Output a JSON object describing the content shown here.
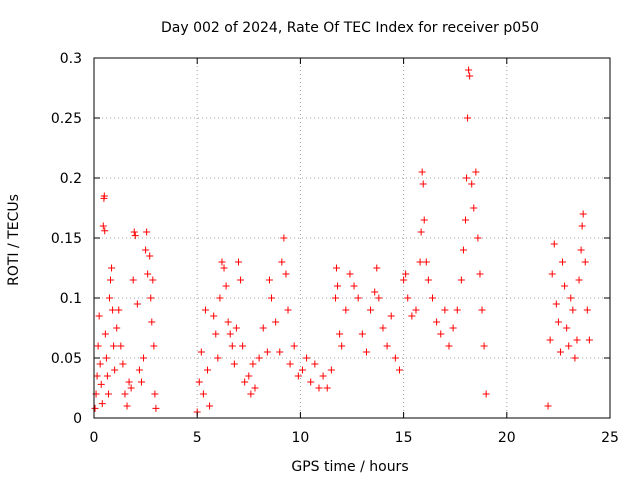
{
  "chart_data": {
    "type": "scatter",
    "title": "Day 002 of 2024, Rate Of TEC Index for receiver p050",
    "xlabel": "GPS time / hours",
    "ylabel": "ROTI / TECUs",
    "xlim": [
      0,
      25
    ],
    "ylim": [
      0,
      0.3
    ],
    "x_ticks": [
      0,
      5,
      10,
      15,
      20,
      25
    ],
    "x_tick_labels": [
      "0",
      "5",
      "10",
      "15",
      "20",
      "25"
    ],
    "y_ticks": [
      0,
      0.05,
      0.1,
      0.15,
      0.2,
      0.25,
      0.3
    ],
    "y_tick_labels": [
      "0",
      "0.05",
      "0.1",
      "0.15",
      "0.2",
      "0.25",
      "0.3"
    ],
    "grid": true,
    "marker": "+",
    "color": "#ff0000",
    "series": [
      {
        "name": "ROTI",
        "points": [
          [
            0.05,
            0.008
          ],
          [
            0.1,
            0.02
          ],
          [
            0.15,
            0.035
          ],
          [
            0.2,
            0.06
          ],
          [
            0.25,
            0.085
          ],
          [
            0.3,
            0.045
          ],
          [
            0.35,
            0.028
          ],
          [
            0.4,
            0.012
          ],
          [
            0.45,
            0.16
          ],
          [
            0.48,
            0.183
          ],
          [
            0.5,
            0.185
          ],
          [
            0.52,
            0.156
          ],
          [
            0.55,
            0.07
          ],
          [
            0.6,
            0.05
          ],
          [
            0.65,
            0.035
          ],
          [
            0.7,
            0.02
          ],
          [
            0.75,
            0.1
          ],
          [
            0.8,
            0.115
          ],
          [
            0.85,
            0.125
          ],
          [
            0.9,
            0.09
          ],
          [
            0.95,
            0.06
          ],
          [
            1.0,
            0.04
          ],
          [
            1.1,
            0.075
          ],
          [
            1.2,
            0.09
          ],
          [
            1.3,
            0.06
          ],
          [
            1.4,
            0.045
          ],
          [
            1.5,
            0.02
          ],
          [
            1.6,
            0.01
          ],
          [
            1.7,
            0.03
          ],
          [
            1.8,
            0.025
          ],
          [
            1.9,
            0.115
          ],
          [
            1.95,
            0.155
          ],
          [
            2.0,
            0.152
          ],
          [
            2.1,
            0.095
          ],
          [
            2.2,
            0.04
          ],
          [
            2.3,
            0.03
          ],
          [
            2.4,
            0.05
          ],
          [
            2.5,
            0.14
          ],
          [
            2.55,
            0.155
          ],
          [
            2.6,
            0.12
          ],
          [
            2.7,
            0.135
          ],
          [
            2.75,
            0.1
          ],
          [
            2.8,
            0.08
          ],
          [
            2.85,
            0.115
          ],
          [
            2.9,
            0.06
          ],
          [
            2.95,
            0.02
          ],
          [
            3.0,
            0.008
          ],
          [
            5.0,
            0.005
          ],
          [
            5.1,
            0.03
          ],
          [
            5.2,
            0.055
          ],
          [
            5.3,
            0.02
          ],
          [
            5.4,
            0.09
          ],
          [
            5.5,
            0.04
          ],
          [
            5.6,
            0.01
          ],
          [
            5.8,
            0.085
          ],
          [
            5.9,
            0.07
          ],
          [
            6.0,
            0.05
          ],
          [
            6.1,
            0.1
          ],
          [
            6.2,
            0.13
          ],
          [
            6.3,
            0.125
          ],
          [
            6.4,
            0.11
          ],
          [
            6.5,
            0.08
          ],
          [
            6.6,
            0.07
          ],
          [
            6.7,
            0.06
          ],
          [
            6.8,
            0.045
          ],
          [
            6.9,
            0.075
          ],
          [
            7.0,
            0.13
          ],
          [
            7.1,
            0.115
          ],
          [
            7.2,
            0.06
          ],
          [
            7.3,
            0.03
          ],
          [
            7.5,
            0.035
          ],
          [
            7.6,
            0.02
          ],
          [
            7.7,
            0.045
          ],
          [
            7.8,
            0.025
          ],
          [
            8.0,
            0.05
          ],
          [
            8.2,
            0.075
          ],
          [
            8.4,
            0.055
          ],
          [
            8.5,
            0.115
          ],
          [
            8.6,
            0.1
          ],
          [
            8.8,
            0.08
          ],
          [
            9.0,
            0.055
          ],
          [
            9.1,
            0.13
          ],
          [
            9.2,
            0.15
          ],
          [
            9.3,
            0.12
          ],
          [
            9.4,
            0.09
          ],
          [
            9.5,
            0.045
          ],
          [
            9.7,
            0.06
          ],
          [
            9.9,
            0.035
          ],
          [
            10.1,
            0.04
          ],
          [
            10.3,
            0.05
          ],
          [
            10.5,
            0.03
          ],
          [
            10.7,
            0.045
          ],
          [
            10.9,
            0.025
          ],
          [
            11.1,
            0.035
          ],
          [
            11.3,
            0.025
          ],
          [
            11.5,
            0.04
          ],
          [
            11.7,
            0.1
          ],
          [
            11.75,
            0.125
          ],
          [
            11.8,
            0.11
          ],
          [
            11.9,
            0.07
          ],
          [
            12.0,
            0.06
          ],
          [
            12.2,
            0.09
          ],
          [
            12.4,
            0.12
          ],
          [
            12.6,
            0.11
          ],
          [
            12.8,
            0.1
          ],
          [
            13.0,
            0.07
          ],
          [
            13.2,
            0.055
          ],
          [
            13.4,
            0.09
          ],
          [
            13.6,
            0.105
          ],
          [
            13.7,
            0.125
          ],
          [
            13.8,
            0.1
          ],
          [
            14.0,
            0.075
          ],
          [
            14.2,
            0.06
          ],
          [
            14.4,
            0.085
          ],
          [
            14.6,
            0.05
          ],
          [
            14.8,
            0.04
          ],
          [
            15.0,
            0.115
          ],
          [
            15.1,
            0.12
          ],
          [
            15.2,
            0.1
          ],
          [
            15.4,
            0.085
          ],
          [
            15.6,
            0.09
          ],
          [
            15.8,
            0.13
          ],
          [
            15.85,
            0.155
          ],
          [
            15.9,
            0.205
          ],
          [
            15.95,
            0.195
          ],
          [
            16.0,
            0.165
          ],
          [
            16.1,
            0.13
          ],
          [
            16.2,
            0.115
          ],
          [
            16.4,
            0.1
          ],
          [
            16.6,
            0.08
          ],
          [
            16.8,
            0.07
          ],
          [
            17.0,
            0.09
          ],
          [
            17.2,
            0.06
          ],
          [
            17.4,
            0.075
          ],
          [
            17.6,
            0.09
          ],
          [
            17.8,
            0.115
          ],
          [
            17.9,
            0.14
          ],
          [
            18.0,
            0.165
          ],
          [
            18.05,
            0.2
          ],
          [
            18.1,
            0.25
          ],
          [
            18.15,
            0.29
          ],
          [
            18.2,
            0.285
          ],
          [
            18.3,
            0.195
          ],
          [
            18.4,
            0.175
          ],
          [
            18.5,
            0.205
          ],
          [
            18.6,
            0.15
          ],
          [
            18.7,
            0.12
          ],
          [
            18.8,
            0.09
          ],
          [
            18.9,
            0.06
          ],
          [
            19.0,
            0.02
          ],
          [
            22.0,
            0.01
          ],
          [
            22.1,
            0.065
          ],
          [
            22.2,
            0.12
          ],
          [
            22.3,
            0.145
          ],
          [
            22.4,
            0.095
          ],
          [
            22.5,
            0.08
          ],
          [
            22.6,
            0.055
          ],
          [
            22.7,
            0.13
          ],
          [
            22.8,
            0.11
          ],
          [
            22.9,
            0.075
          ],
          [
            23.0,
            0.06
          ],
          [
            23.1,
            0.1
          ],
          [
            23.2,
            0.09
          ],
          [
            23.3,
            0.05
          ],
          [
            23.4,
            0.065
          ],
          [
            23.5,
            0.115
          ],
          [
            23.6,
            0.14
          ],
          [
            23.65,
            0.16
          ],
          [
            23.7,
            0.17
          ],
          [
            23.8,
            0.13
          ],
          [
            23.9,
            0.09
          ],
          [
            24.0,
            0.065
          ]
        ]
      }
    ]
  }
}
